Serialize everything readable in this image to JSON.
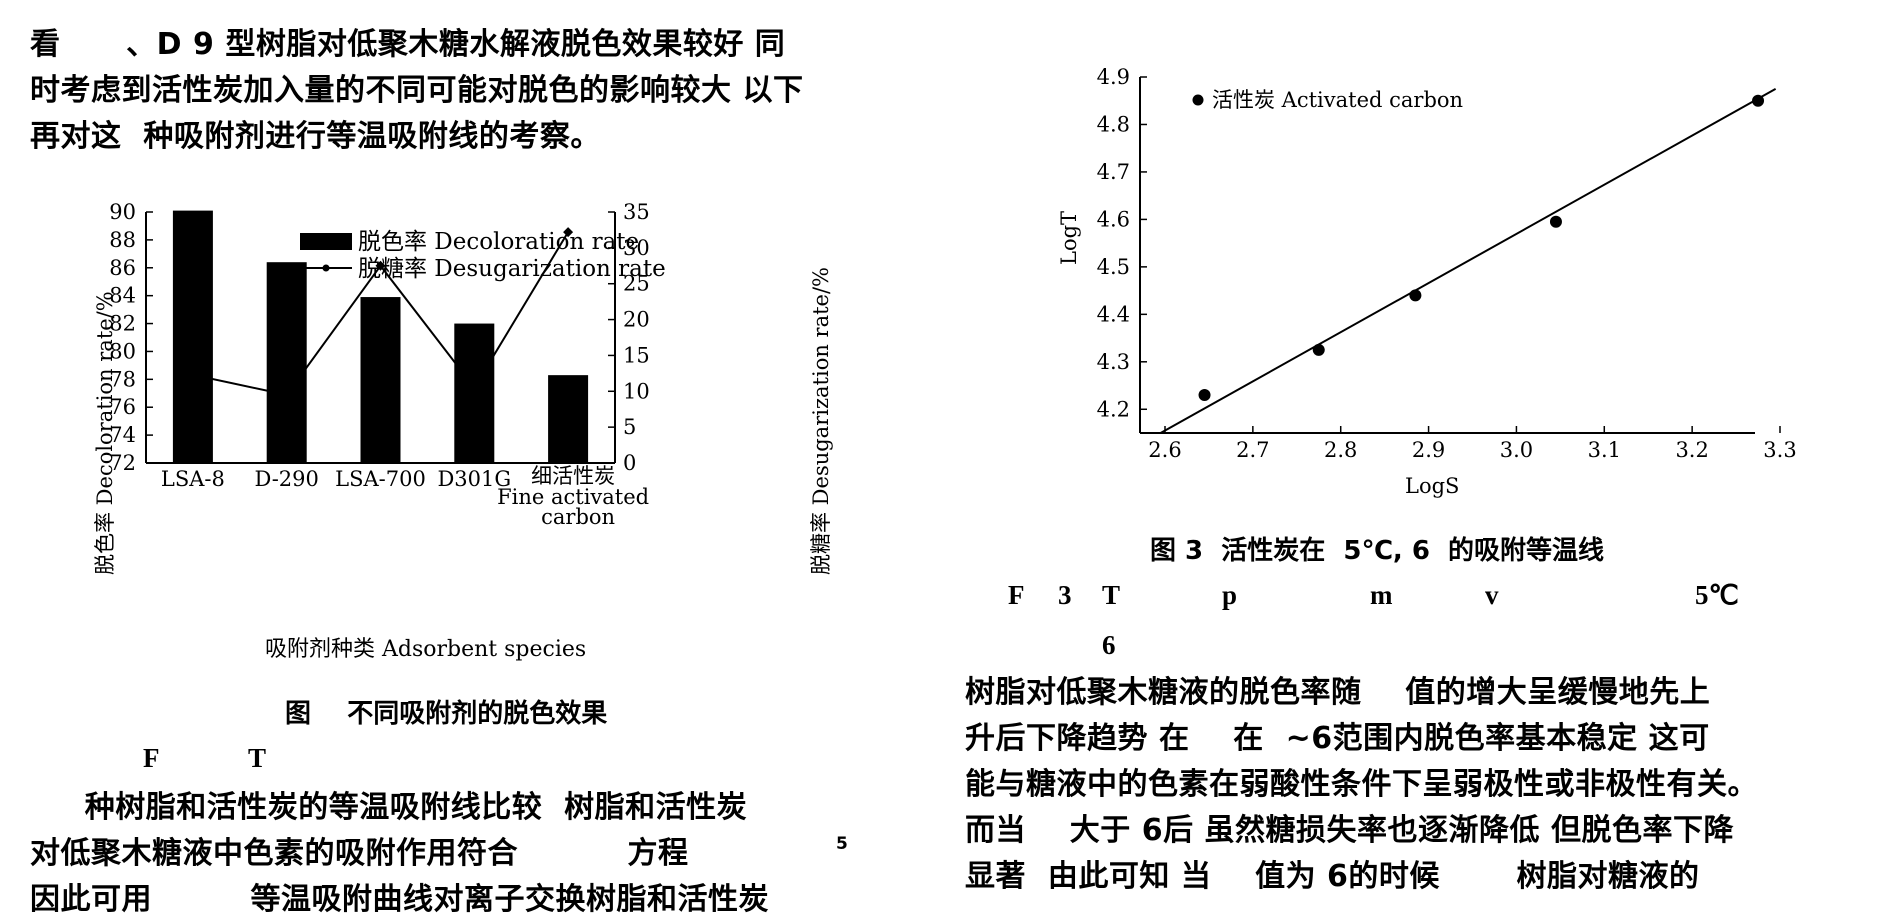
{
  "left_column": {
    "intro_lines": [
      "看      、D 9 型树脂对低聚木糖水解液脱色效果较好 同",
      "时考虑到活性炭加入量的不同可能对脱色的影响较大 以下",
      "再对这  种吸附剂进行等温吸附线的考察。"
    ],
    "fig_caption_cn": "图    不同吸附剂的脱色效果",
    "fig_caption_en_parts": [
      "F",
      "T"
    ],
    "body_lines": [
      "     种树脂和活性炭的等温吸附线比较  树脂和活性炭",
      "对低聚木糖液中色素的吸附作用符合          方程",
      "因此可用         等温吸附曲线对离子交换树脂和活性炭"
    ],
    "superscript": "5"
  },
  "right_column": {
    "fig_caption_cn": "图 3  活性炭在  5℃, 6  的吸附等温线",
    "fig_caption_en_parts": [
      "F",
      "3",
      "T",
      "p",
      "m",
      "v",
      "5℃",
      "6"
    ],
    "body_lines": [
      "树脂对低聚木糖液的脱色率随    值的增大呈缓慢地先上",
      "升后下降趋势 在    在  ~6范围内脱色率基本稳定 这可",
      "能与糖液中的色素在弱酸性条件下呈弱极性或非极性有关。",
      "而当    大于 6后 虽然糖损失率也逐渐降低 但脱色率下降",
      "显著  由此可知 当    值为 6的时候       树脂对糖液的"
    ]
  },
  "chart_data": [
    {
      "type": "bar+line",
      "categories": [
        "LSA-8",
        "D-290",
        "LSA-700",
        "D301G",
        "细活性炭\nFine activated\ncarbon"
      ],
      "category_labels": [
        "LSA-8",
        "D-290",
        "LSA-700",
        "D301G",
        "细活性炭",
        "Fine activated",
        "carbon"
      ],
      "series": [
        {
          "name": "脱色率 Decoloration rate",
          "type": "bar",
          "axis": "left",
          "values": [
            90.1,
            86.4,
            83.9,
            82.0,
            78.3
          ]
        },
        {
          "name": "脱糖率 Desugarization rate",
          "type": "line",
          "axis": "right",
          "values": [
            12.3,
            9.5,
            27.5,
            10.5,
            32.2
          ]
        }
      ],
      "ylabel_left": "脱色率 Decoloration rate/%",
      "ylabel_right": "脱糖率 Desugarization rate/%",
      "xlabel": "吸附剂种类 Adsorbent species",
      "ylim_left": [
        72,
        90
      ],
      "yticks_left": [
        72,
        74,
        76,
        78,
        80,
        82,
        84,
        86,
        88,
        90
      ],
      "ylim_right": [
        0,
        35
      ],
      "yticks_right": [
        0,
        5,
        10,
        15,
        20,
        25,
        30,
        35
      ],
      "legend": "top-center"
    },
    {
      "type": "scatter",
      "series": [
        {
          "name": "活性炭 Activated carbon",
          "x": [
            2.645,
            2.775,
            2.885,
            3.045,
            3.275
          ],
          "y": [
            4.23,
            4.325,
            4.44,
            4.595,
            4.85
          ]
        }
      ],
      "fit_line": {
        "x": [
          2.595,
          3.295
        ],
        "y": [
          4.15,
          4.875
        ]
      },
      "xlabel": "LogS",
      "ylabel": "LogT",
      "xlim": [
        2.6,
        3.3
      ],
      "xticks": [
        "2.6",
        "2.7",
        "2.8",
        "2.9",
        "3.0",
        "3.1",
        "3.2",
        "3.3"
      ],
      "ylim": [
        4.15,
        4.9
      ],
      "yticks": [
        "4.2",
        "4.3",
        "4.4",
        "4.5",
        "4.6",
        "4.7",
        "4.8",
        "4.9"
      ],
      "legend": "top-left"
    }
  ]
}
